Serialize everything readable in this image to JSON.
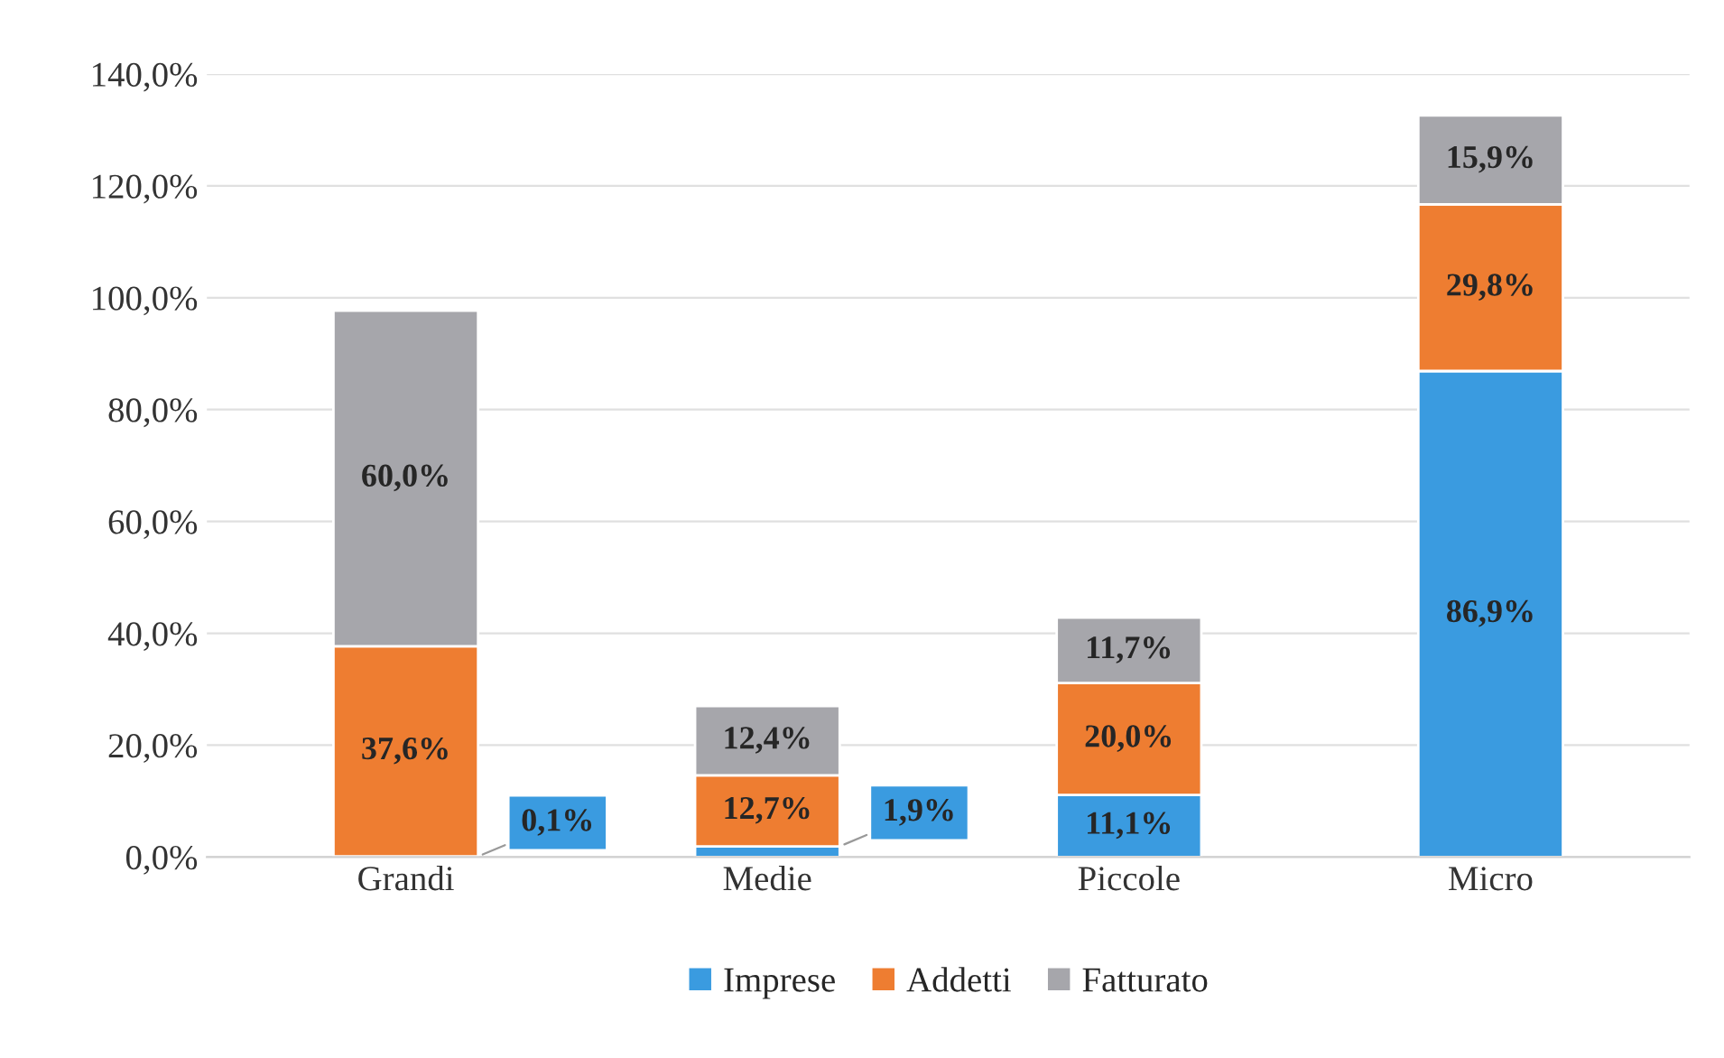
{
  "chart_data": {
    "type": "bar",
    "stacked": true,
    "categories": [
      "Grandi",
      "Medie",
      "Piccole",
      "Micro"
    ],
    "series": [
      {
        "name": "Imprese",
        "color": "#3a9be0",
        "values": [
          0.1,
          1.9,
          11.1,
          86.9
        ],
        "value_labels": [
          "0,1%",
          "1,9%",
          "11,1%",
          "86,9%"
        ]
      },
      {
        "name": "Addetti",
        "color": "#ee7d31",
        "values": [
          37.6,
          12.7,
          20.0,
          29.8
        ],
        "value_labels": [
          "37,6%",
          "12,7%",
          "20,0%",
          "29,8%"
        ]
      },
      {
        "name": "Fatturato",
        "color": "#a6a6ab",
        "values": [
          60.0,
          12.4,
          11.7,
          15.9
        ],
        "value_labels": [
          "60,0%",
          "12,4%",
          "11,7%",
          "15,9%"
        ]
      }
    ],
    "ylim": [
      0,
      140
    ],
    "yticks": [
      {
        "value": 0,
        "label": "0,0%"
      },
      {
        "value": 20,
        "label": "20,0%"
      },
      {
        "value": 40,
        "label": "40,0%"
      },
      {
        "value": 60,
        "label": "60,0%"
      },
      {
        "value": 80,
        "label": "80,0%"
      },
      {
        "value": 100,
        "label": "100,0%"
      },
      {
        "value": 120,
        "label": "120,0%"
      },
      {
        "value": 140,
        "label": "140,0%"
      }
    ],
    "grid": "y",
    "legend": "bottom"
  }
}
